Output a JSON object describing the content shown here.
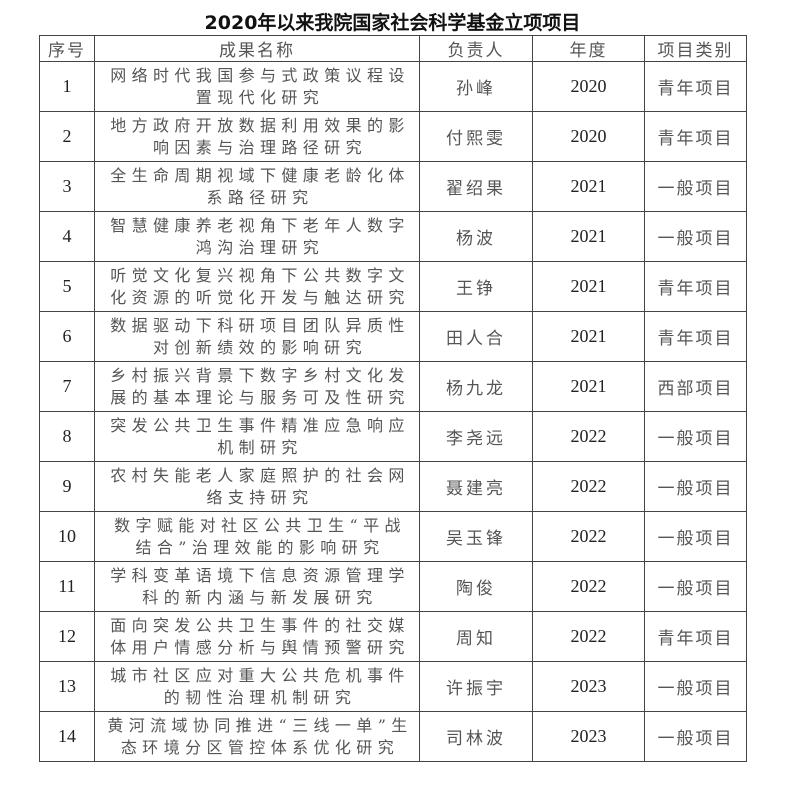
{
  "title": "2020年以来我院国家社会科学基金立项项目",
  "headers": [
    "序号",
    "成果名称",
    "负责人",
    "年度",
    "项目类别"
  ],
  "rows": [
    [
      "1",
      "网络时代我国参与式政策议程设置现代化研究",
      "孙峰",
      "2020",
      "青年项目"
    ],
    [
      "2",
      "地方政府开放数据利用效果的影响因素与治理路径研究",
      "付熙雯",
      "2020",
      "青年项目"
    ],
    [
      "3",
      "全生命周期视域下健康老龄化体系路径研究",
      "翟绍果",
      "2021",
      "一般项目"
    ],
    [
      "4",
      "智慧健康养老视角下老年人数字鸿沟治理研究",
      "杨波",
      "2021",
      "一般项目"
    ],
    [
      "5",
      "听觉文化复兴视角下公共数字文化资源的听觉化开发与触达研究",
      "王铮",
      "2021",
      "青年项目"
    ],
    [
      "6",
      "数据驱动下科研项目团队异质性对创新绩效的影响研究",
      "田人合",
      "2021",
      "青年项目"
    ],
    [
      "7",
      "乡村振兴背景下数字乡村文化发展的基本理论与服务可及性研究",
      "杨九龙",
      "2021",
      "西部项目"
    ],
    [
      "8",
      "突发公共卫生事件精准应急响应机制研究",
      "李尧远",
      "2022",
      "一般项目"
    ],
    [
      "9",
      "农村失能老人家庭照护的社会网络支持研究",
      "聂建亮",
      "2022",
      "一般项目"
    ],
    [
      "10",
      "数字赋能对社区公共卫生“平战结合”治理效能的影响研究",
      "吴玉锋",
      "2022",
      "一般项目"
    ],
    [
      "11",
      "学科变革语境下信息资源管理学科的新内涵与新发展研究",
      "陶俊",
      "2022",
      "一般项目"
    ],
    [
      "12",
      "面向突发公共卫生事件的社交媒体用户情感分析与舆情预警研究",
      "周知",
      "2022",
      "青年项目"
    ],
    [
      "13",
      "城市社区应对重大公共危机事件的韧性治理机制研究",
      "许振宇",
      "2023",
      "一般项目"
    ],
    [
      "14",
      "黄河流域协同推进“三线一单”生态环境分区管控体系优化研究",
      "司林波",
      "2023",
      "一般项目"
    ]
  ]
}
